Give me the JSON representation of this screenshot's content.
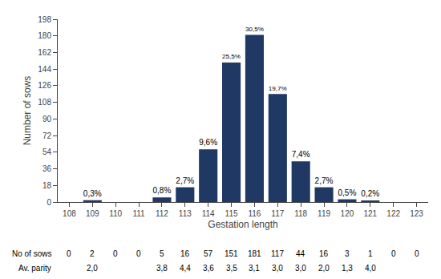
{
  "chart_data": {
    "type": "bar",
    "x": [
      108,
      109,
      110,
      111,
      112,
      113,
      114,
      115,
      116,
      117,
      118,
      119,
      120,
      121,
      122,
      123
    ],
    "values": [
      0,
      2,
      0,
      0,
      5,
      16,
      57,
      151,
      181,
      117,
      44,
      16,
      3,
      1,
      0,
      0
    ],
    "percentages": [
      null,
      0.3,
      null,
      null,
      0.8,
      2.7,
      9.6,
      25.5,
      30.5,
      19.7,
      7.4,
      2.7,
      0.5,
      0.2,
      null,
      null
    ],
    "percentage_labels": [
      null,
      "0,3%",
      null,
      null,
      "0,8%",
      "2,7%",
      "9,6%",
      "25,5%",
      "30,5%",
      "19,7%",
      "7,4%",
      "2,7%",
      "0,5%",
      "0,2%",
      null,
      null
    ],
    "color": "#1F3864",
    "xlabel": "Gestation length",
    "ylabel": "Number of sows",
    "xlim": [
      107.5,
      123.5
    ],
    "xticks": [
      108,
      109,
      110,
      111,
      112,
      113,
      114,
      115,
      116,
      117,
      118,
      119,
      120,
      121,
      122,
      123
    ],
    "ylim": [
      0,
      198
    ],
    "yticks": [
      0,
      18,
      36,
      54,
      72,
      90,
      108,
      126,
      144,
      162,
      180,
      198
    ],
    "grid": false,
    "table": [
      {
        "name": "No of sows",
        "values": [
          0,
          2,
          0,
          0,
          5,
          16,
          57,
          151,
          181,
          117,
          44,
          16,
          3,
          1,
          0,
          0
        ]
      },
      {
        "name": "Av. parity",
        "values": [
          null,
          2.0,
          null,
          null,
          3.8,
          4.4,
          3.6,
          3.5,
          3.1,
          3.0,
          3.0,
          2.0,
          1.3,
          4.0,
          null,
          null
        ],
        "value_labels": [
          null,
          "2,0",
          null,
          null,
          "3,8",
          "4,4",
          "3,6",
          "3,5",
          "3,1",
          "3,0",
          "3,0",
          "2,0",
          "1,3",
          "4,0",
          null,
          null
        ]
      }
    ]
  }
}
